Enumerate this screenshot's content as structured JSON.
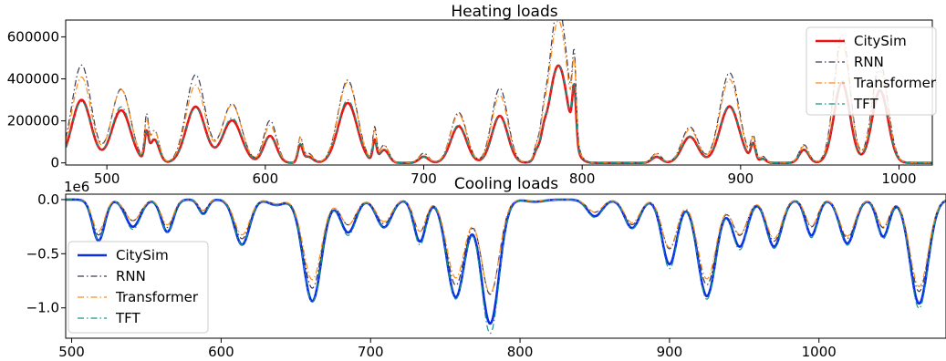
{
  "chart_data": [
    {
      "type": "line",
      "title": "Heating loads",
      "xlim": [
        474,
        1021
      ],
      "ylim": [
        -10000,
        680000
      ],
      "xticks": [
        500,
        600,
        700,
        800,
        900,
        1000
      ],
      "yticks": [
        0,
        200000,
        400000,
        600000
      ],
      "ytick_labels": [
        "0",
        "200000",
        "400000",
        "600000"
      ],
      "legend_position": "upper right",
      "peaks": [
        {
          "x": 484,
          "w": 6,
          "y": 300000
        },
        {
          "x": 509,
          "w": 6,
          "y": 250000
        },
        {
          "x": 525,
          "w": 1.2,
          "y": 120000
        },
        {
          "x": 530,
          "w": 3,
          "y": 110000
        },
        {
          "x": 556,
          "w": 6,
          "y": 270000
        },
        {
          "x": 579,
          "w": 6,
          "y": 200000
        },
        {
          "x": 603,
          "w": 4,
          "y": 130000
        },
        {
          "x": 622,
          "w": 1.5,
          "y": 80000
        },
        {
          "x": 627,
          "w": 3,
          "y": 30000
        },
        {
          "x": 652,
          "w": 6,
          "y": 280000
        },
        {
          "x": 669,
          "w": 1.2,
          "y": 100000
        },
        {
          "x": 675,
          "w": 3,
          "y": 60000
        },
        {
          "x": 700,
          "w": 3,
          "y": 30000
        },
        {
          "x": 722,
          "w": 5,
          "y": 170000
        },
        {
          "x": 748,
          "w": 5,
          "y": 230000
        },
        {
          "x": 771,
          "w": 1.5,
          "y": 30000
        },
        {
          "x": 774,
          "w": 1.5,
          "y": 20000
        },
        {
          "x": 776,
          "w": 1.5,
          "y": 40000
        },
        {
          "x": 785,
          "w": 6,
          "y": 480000
        },
        {
          "x": 795,
          "w": 1.2,
          "y": 250000
        },
        {
          "x": 847,
          "w": 3,
          "y": 30000
        },
        {
          "x": 868,
          "w": 5,
          "y": 120000
        },
        {
          "x": 893,
          "w": 6,
          "y": 280000
        },
        {
          "x": 908,
          "w": 1.5,
          "y": 80000
        },
        {
          "x": 914,
          "w": 2,
          "y": 20000
        },
        {
          "x": 940,
          "w": 3,
          "y": 60000
        },
        {
          "x": 964,
          "w": 5,
          "y": 400000
        },
        {
          "x": 988,
          "w": 5,
          "y": 330000
        }
      ],
      "series": [
        {
          "name": "CitySim",
          "color": "#ee1111",
          "style": "solid",
          "width": 2.6,
          "scale": 1.0
        },
        {
          "name": "RNN",
          "color": "#3b3b55",
          "style": "dashdot",
          "width": 1.2,
          "scale": 1.48
        },
        {
          "name": "Transformer",
          "color": "#ff8c1a",
          "style": "dashdot",
          "width": 1.2,
          "scale": 1.38
        },
        {
          "name": "TFT",
          "color": "#14968c",
          "style": "dashdot",
          "width": 1.2,
          "scale": 1.02
        }
      ]
    },
    {
      "type": "line",
      "title": "Cooling loads",
      "offset_text": "1e6",
      "xlim": [
        496,
        1085
      ],
      "ylim": [
        -1.28,
        0.05
      ],
      "xticks": [
        500,
        600,
        700,
        800,
        900,
        1000
      ],
      "yticks": [
        -1.0,
        -0.5,
        0.0
      ],
      "ytick_labels": [
        "−1.0",
        "−0.5",
        "0.0"
      ],
      "legend_position": "lower left",
      "peaks": [
        {
          "x": 518,
          "w": 4,
          "y": -0.38
        },
        {
          "x": 541,
          "w": 5,
          "y": -0.25
        },
        {
          "x": 564,
          "w": 4,
          "y": -0.3
        },
        {
          "x": 588,
          "w": 3,
          "y": -0.13
        },
        {
          "x": 614,
          "w": 5,
          "y": -0.42
        },
        {
          "x": 637,
          "w": 5,
          "y": -0.05
        },
        {
          "x": 661,
          "w": 6,
          "y": -0.95
        },
        {
          "x": 685,
          "w": 5,
          "y": -0.3
        },
        {
          "x": 709,
          "w": 5,
          "y": -0.26
        },
        {
          "x": 733,
          "w": 4,
          "y": -0.38
        },
        {
          "x": 757,
          "w": 6,
          "y": -0.92
        },
        {
          "x": 780,
          "w": 6,
          "y": -1.12
        },
        {
          "x": 810,
          "w": 6,
          "y": -0.02
        },
        {
          "x": 850,
          "w": 5,
          "y": -0.15
        },
        {
          "x": 875,
          "w": 5,
          "y": -0.27
        },
        {
          "x": 900,
          "w": 5,
          "y": -0.58
        },
        {
          "x": 925,
          "w": 6,
          "y": -0.92
        },
        {
          "x": 947,
          "w": 5,
          "y": -0.42
        },
        {
          "x": 970,
          "w": 5,
          "y": -0.45
        },
        {
          "x": 995,
          "w": 4,
          "y": -0.32
        },
        {
          "x": 1019,
          "w": 5,
          "y": -0.42
        },
        {
          "x": 1043,
          "w": 4,
          "y": -0.33
        },
        {
          "x": 1067,
          "w": 6,
          "y": -1.0
        }
      ],
      "series": [
        {
          "name": "CitySim",
          "color": "#0b2fe6",
          "style": "solid",
          "width": 2.6,
          "scale": 1.0
        },
        {
          "name": "RNN",
          "color": "#3b3b55",
          "style": "dashdot",
          "width": 1.2,
          "scale": 0.82
        },
        {
          "name": "Transformer",
          "color": "#ff8c1a",
          "style": "dashdot",
          "width": 1.2,
          "scale": 0.78
        },
        {
          "name": "TFT",
          "color": "#14968c",
          "style": "dashdot",
          "width": 1.2,
          "scale": 1.05
        }
      ]
    }
  ]
}
